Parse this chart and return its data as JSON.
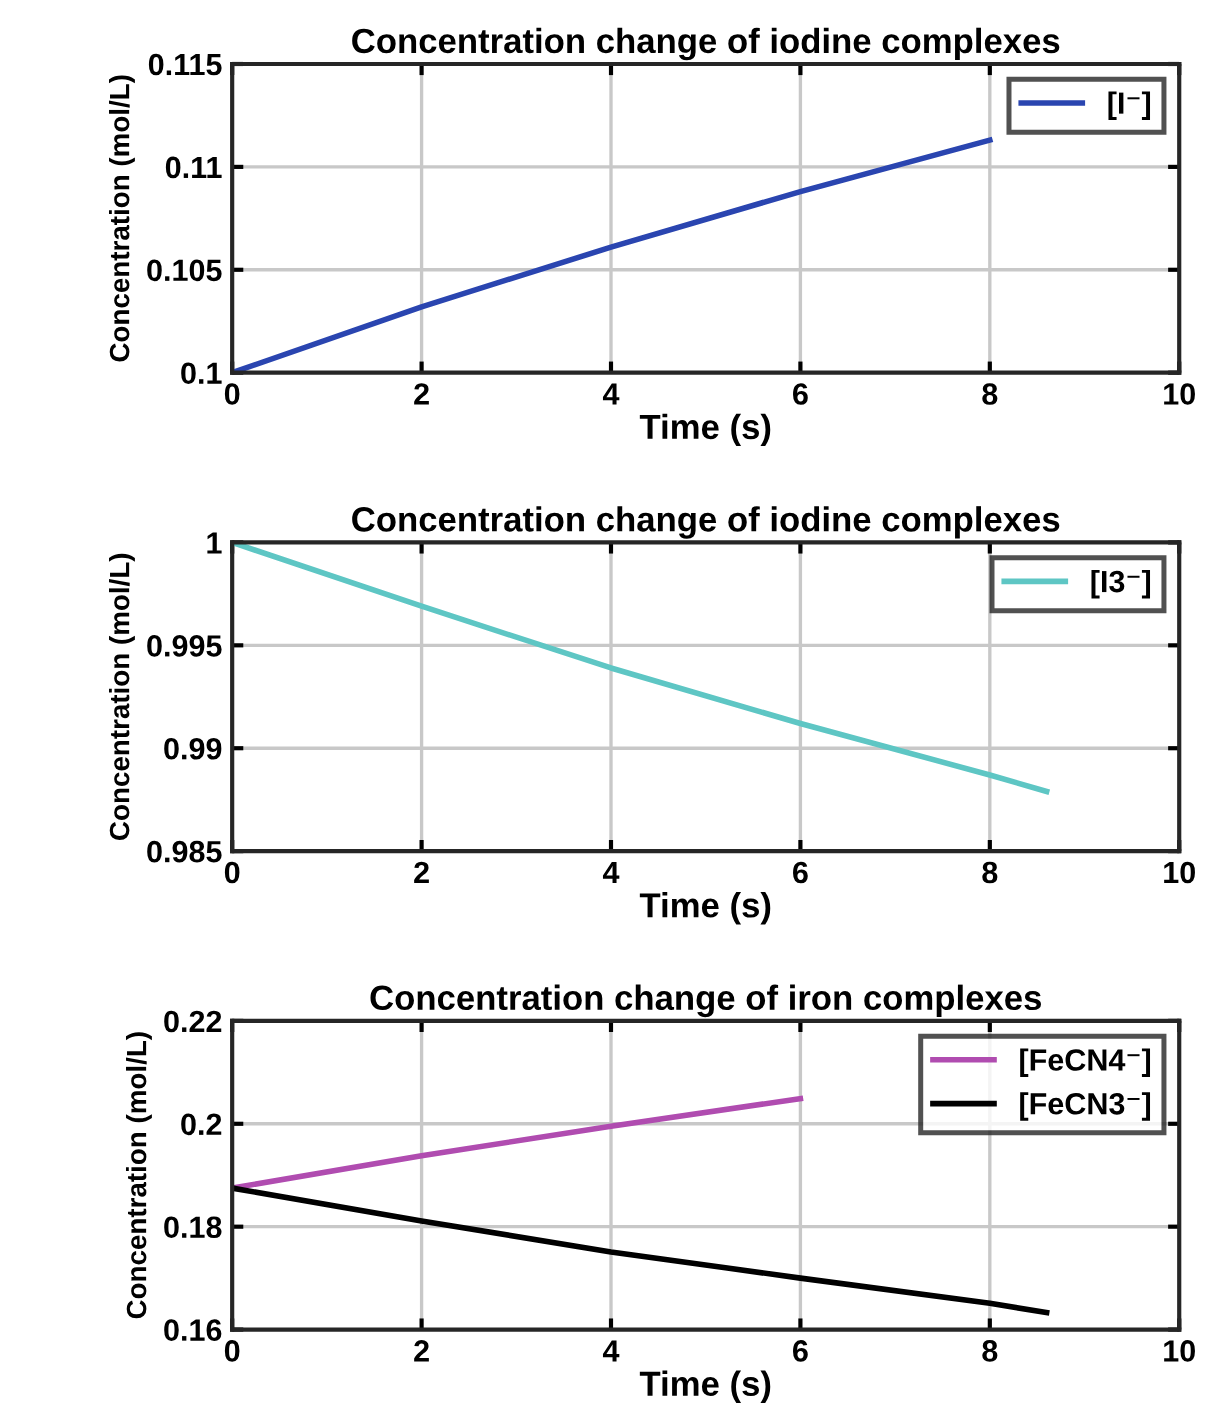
{
  "chart_data": [
    {
      "type": "line",
      "title": "Concentration change of iodine complexes",
      "xlabel": "Time (s)",
      "ylabel": "Concentration (mol/L)",
      "x": [
        0,
        2,
        4,
        6,
        8
      ],
      "series": [
        {
          "name": "[I⁻]",
          "color": "#2a45b0",
          "values": [
            0.1,
            0.1032,
            0.1061,
            0.1088,
            0.1113
          ]
        }
      ],
      "xlim": [
        0,
        10
      ],
      "xticks": [
        0,
        2,
        4,
        6,
        8,
        10
      ],
      "ylim": [
        0.1,
        0.115
      ],
      "yticks": [
        0.1,
        0.105,
        0.11,
        0.115
      ],
      "grid": true,
      "legend": "top right"
    },
    {
      "type": "line",
      "title": "Concentration change of iodine complexes",
      "xlabel": "Time (s)",
      "ylabel": "Concentration (mol/L)",
      "x": [
        0,
        2,
        4,
        6,
        8,
        8.6
      ],
      "series": [
        {
          "name": "[I3⁻]",
          "color": "#5ec6c4",
          "values": [
            1,
            0.9969,
            0.9939,
            0.9912,
            0.9887,
            0.9879
          ]
        }
      ],
      "xlim": [
        0,
        10
      ],
      "xticks": [
        0,
        2,
        4,
        6,
        8,
        10
      ],
      "ylim": [
        0.985,
        1
      ],
      "yticks": [
        0.985,
        0.99,
        0.995,
        1
      ],
      "grid": true,
      "legend": "top right"
    },
    {
      "type": "line",
      "title": "Concentration change of iron complexes",
      "xlabel": "Time (s)",
      "ylabel": "Concentration (mol/L)",
      "x": [
        0,
        2,
        4,
        6,
        8,
        8.6
      ],
      "series": [
        {
          "name": "[FeCN4⁻]",
          "color": "#b04cb0",
          "values": [
            0.1875,
            0.1938,
            0.1995,
            0.2049,
            null,
            null
          ]
        },
        {
          "name": "[FeCN3⁻]",
          "color": "#000000",
          "values": [
            0.1875,
            0.1811,
            0.1751,
            0.17,
            0.1651,
            0.1633
          ]
        }
      ],
      "xlim": [
        0,
        10
      ],
      "xticks": [
        0,
        2,
        4,
        6,
        8,
        10
      ],
      "ylim": [
        0.16,
        0.22
      ],
      "yticks": [
        0.16,
        0.18,
        0.2,
        0.22
      ],
      "grid": true,
      "legend": "top right"
    }
  ]
}
